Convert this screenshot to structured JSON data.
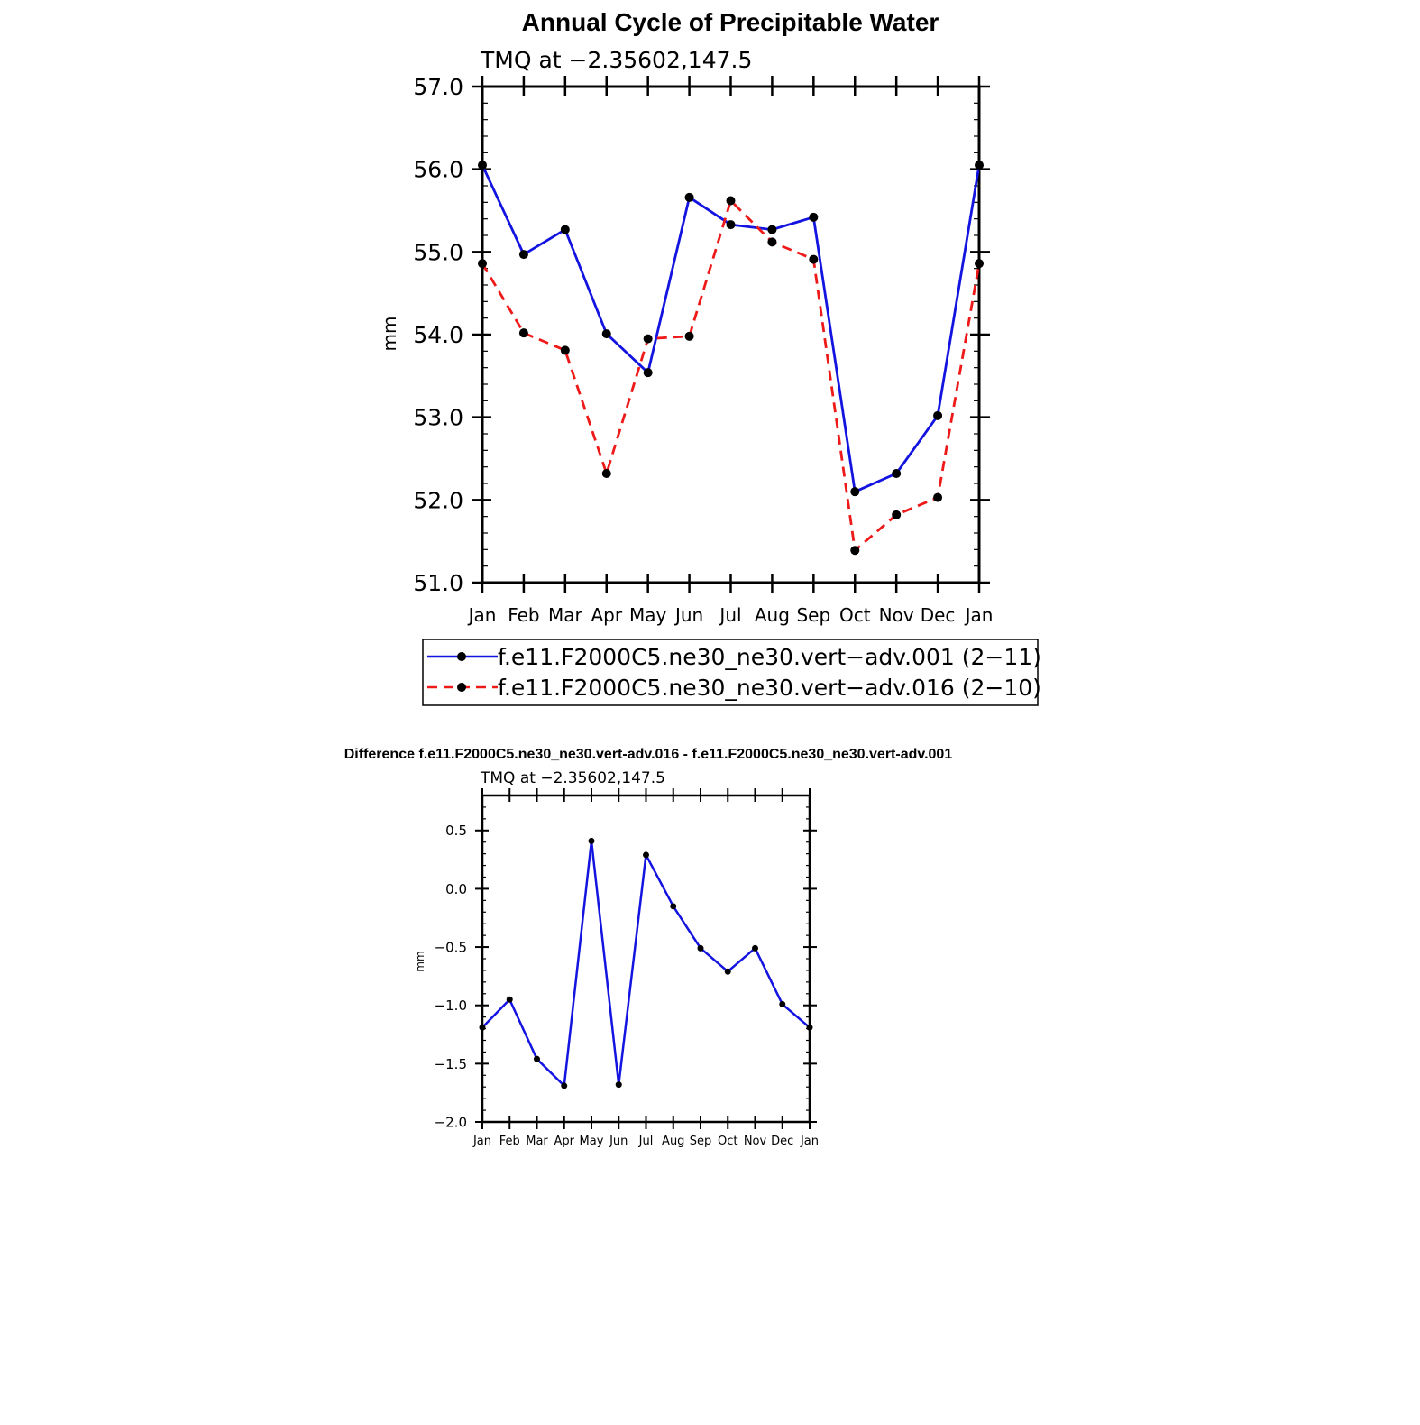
{
  "colors": {
    "series1": "#1414e0",
    "series2": "#ee1a1a",
    "marker": "#000000",
    "axis": "#000000"
  },
  "chart_data": [
    {
      "type": "line",
      "title": "Annual Cycle of Precipitable Water",
      "subtitle": "TMQ at −2.35602,147.5",
      "ylabel": "mm",
      "xlabel": "",
      "categories": [
        "Jan",
        "Feb",
        "Mar",
        "Apr",
        "May",
        "Jun",
        "Jul",
        "Aug",
        "Sep",
        "Oct",
        "Nov",
        "Dec",
        "Jan"
      ],
      "ylim": [
        51.0,
        57.0
      ],
      "yticks": [
        51.0,
        52.0,
        53.0,
        54.0,
        55.0,
        56.0,
        57.0
      ],
      "ytick_labels": [
        "51.0",
        "52.0",
        "53.0",
        "54.0",
        "55.0",
        "56.0",
        "57.0"
      ],
      "grid": false,
      "legend_position": "bottom",
      "series": [
        {
          "name": "f.e11.F2000C5.ne30_ne30.vert−adv.001 (2−11)",
          "style": "solid",
          "values": [
            56.05,
            54.97,
            55.27,
            54.01,
            53.54,
            55.66,
            55.33,
            55.27,
            55.42,
            52.1,
            52.32,
            53.02,
            56.05
          ]
        },
        {
          "name": "f.e11.F2000C5.ne30_ne30.vert−adv.016 (2−10)",
          "style": "dashed",
          "values": [
            54.86,
            54.02,
            53.81,
            52.32,
            53.95,
            53.98,
            55.62,
            55.12,
            54.91,
            51.39,
            51.82,
            52.03,
            54.86
          ]
        }
      ]
    },
    {
      "type": "line",
      "title": "Difference f.e11.F2000C5.ne30_ne30.vert-adv.016 - f.e11.F2000C5.ne30_ne30.vert-adv.001",
      "subtitle": "TMQ at −2.35602,147.5",
      "ylabel": "mm",
      "xlabel": "",
      "categories": [
        "Jan",
        "Feb",
        "Mar",
        "Apr",
        "May",
        "Jun",
        "Jul",
        "Aug",
        "Sep",
        "Oct",
        "Nov",
        "Dec",
        "Jan"
      ],
      "ylim": [
        -2.0,
        0.8
      ],
      "yticks": [
        -2.0,
        -1.5,
        -1.0,
        -0.5,
        0.0,
        0.5
      ],
      "ytick_labels": [
        "−2.0",
        "−1.5",
        "−1.0",
        "−0.5",
        "0.0",
        "0.5"
      ],
      "grid": false,
      "series": [
        {
          "style": "solid",
          "values": [
            -1.19,
            -0.95,
            -1.46,
            -1.69,
            0.41,
            -1.68,
            0.29,
            -0.15,
            -0.51,
            -0.71,
            -0.51,
            -0.99,
            -1.19
          ]
        }
      ]
    }
  ]
}
